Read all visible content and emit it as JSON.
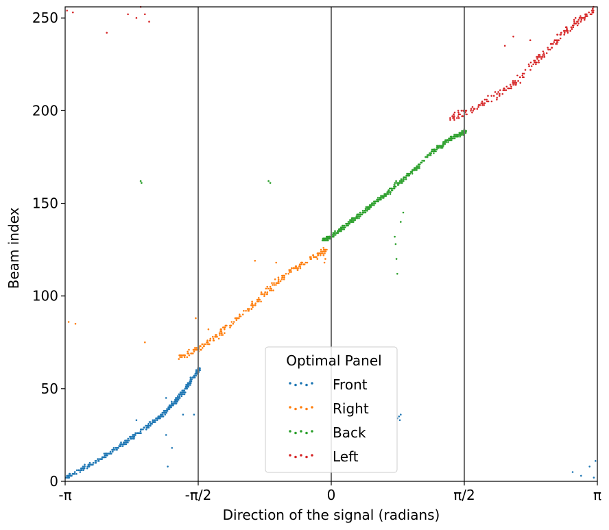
{
  "chart_data": {
    "type": "scatter",
    "xlabel": "Direction of the signal (radians)",
    "ylabel": "Beam index",
    "xlim": [
      -3.14159,
      3.14159
    ],
    "ylim": [
      0,
      256
    ],
    "x_ticks": [
      {
        "value": -3.14159,
        "label": "-π"
      },
      {
        "value": -1.5708,
        "label": "-π/2"
      },
      {
        "value": 0,
        "label": "0"
      },
      {
        "value": 1.5708,
        "label": "π/2"
      },
      {
        "value": 3.14159,
        "label": "π"
      }
    ],
    "y_ticks": [
      {
        "value": 0,
        "label": "0"
      },
      {
        "value": 50,
        "label": "50"
      },
      {
        "value": 100,
        "label": "100"
      },
      {
        "value": 150,
        "label": "150"
      },
      {
        "value": 200,
        "label": "200"
      },
      {
        "value": 250,
        "label": "250"
      }
    ],
    "vertical_lines": [
      -1.5708,
      0,
      1.5708
    ],
    "grid": false,
    "legend": {
      "title": "Optimal Panel",
      "placement": "lower-center"
    },
    "series": [
      {
        "name": "Front",
        "color": "#1f77b4",
        "trend": [
          [
            -3.14159,
            2
          ],
          [
            -2.8,
            10
          ],
          [
            -2.4,
            22
          ],
          [
            -2.1,
            32
          ],
          [
            -1.9,
            40
          ],
          [
            -1.75,
            48
          ],
          [
            -1.6,
            58
          ],
          [
            -1.55,
            61
          ]
        ],
        "outliers": [
          [
            -1.93,
            8
          ],
          [
            -1.88,
            18
          ],
          [
            -1.95,
            25
          ],
          [
            -2.3,
            33
          ],
          [
            -1.95,
            45
          ],
          [
            -1.75,
            36
          ],
          [
            -1.62,
            36
          ],
          [
            0.78,
            34
          ],
          [
            0.8,
            35
          ],
          [
            0.82,
            36
          ],
          [
            0.81,
            33
          ],
          [
            2.85,
            5
          ],
          [
            2.95,
            3
          ],
          [
            3.05,
            8
          ],
          [
            3.1,
            2
          ],
          [
            3.12,
            11
          ]
        ]
      },
      {
        "name": "Right",
        "color": "#ff7f0e",
        "trend": [
          [
            -1.8,
            67
          ],
          [
            -1.55,
            72
          ],
          [
            -1.3,
            80
          ],
          [
            -1.0,
            92
          ],
          [
            -0.75,
            103
          ],
          [
            -0.5,
            113
          ],
          [
            -0.25,
            120
          ],
          [
            -0.05,
            125
          ]
        ],
        "outliers": [
          [
            -3.1,
            86
          ],
          [
            -3.02,
            85
          ],
          [
            -2.2,
            75
          ],
          [
            -1.6,
            88
          ],
          [
            -1.45,
            82
          ],
          [
            -0.9,
            119
          ],
          [
            -0.65,
            118
          ],
          [
            -0.08,
            118
          ],
          [
            -0.07,
            120
          ]
        ]
      },
      {
        "name": "Back",
        "color": "#2ca02c",
        "trend": [
          [
            -0.1,
            130
          ],
          [
            0.0,
            132
          ],
          [
            0.2,
            139
          ],
          [
            0.45,
            148
          ],
          [
            0.7,
            157
          ],
          [
            0.95,
            167
          ],
          [
            1.2,
            178
          ],
          [
            1.45,
            186
          ],
          [
            1.6,
            189
          ]
        ],
        "outliers": [
          [
            -2.25,
            162
          ],
          [
            -2.24,
            161
          ],
          [
            -0.74,
            162
          ],
          [
            -0.72,
            161
          ],
          [
            0.75,
            132
          ],
          [
            0.76,
            128
          ],
          [
            0.77,
            120
          ],
          [
            0.78,
            112
          ],
          [
            0.82,
            140
          ],
          [
            0.85,
            145
          ]
        ]
      },
      {
        "name": "Left",
        "color": "#d62728",
        "trend": [
          [
            1.4,
            196
          ],
          [
            1.6,
            199
          ],
          [
            1.9,
            207
          ],
          [
            2.2,
            216
          ],
          [
            2.45,
            228
          ],
          [
            2.7,
            240
          ],
          [
            2.9,
            248
          ],
          [
            3.1,
            254
          ]
        ],
        "outliers": [
          [
            -3.12,
            254
          ],
          [
            -3.05,
            253
          ],
          [
            -2.65,
            242
          ],
          [
            -2.4,
            252
          ],
          [
            -2.3,
            250
          ],
          [
            -2.25,
            256
          ],
          [
            -2.2,
            252
          ],
          [
            -2.15,
            248
          ],
          [
            2.05,
            235
          ],
          [
            2.15,
            240
          ],
          [
            2.35,
            238
          ]
        ]
      }
    ]
  }
}
